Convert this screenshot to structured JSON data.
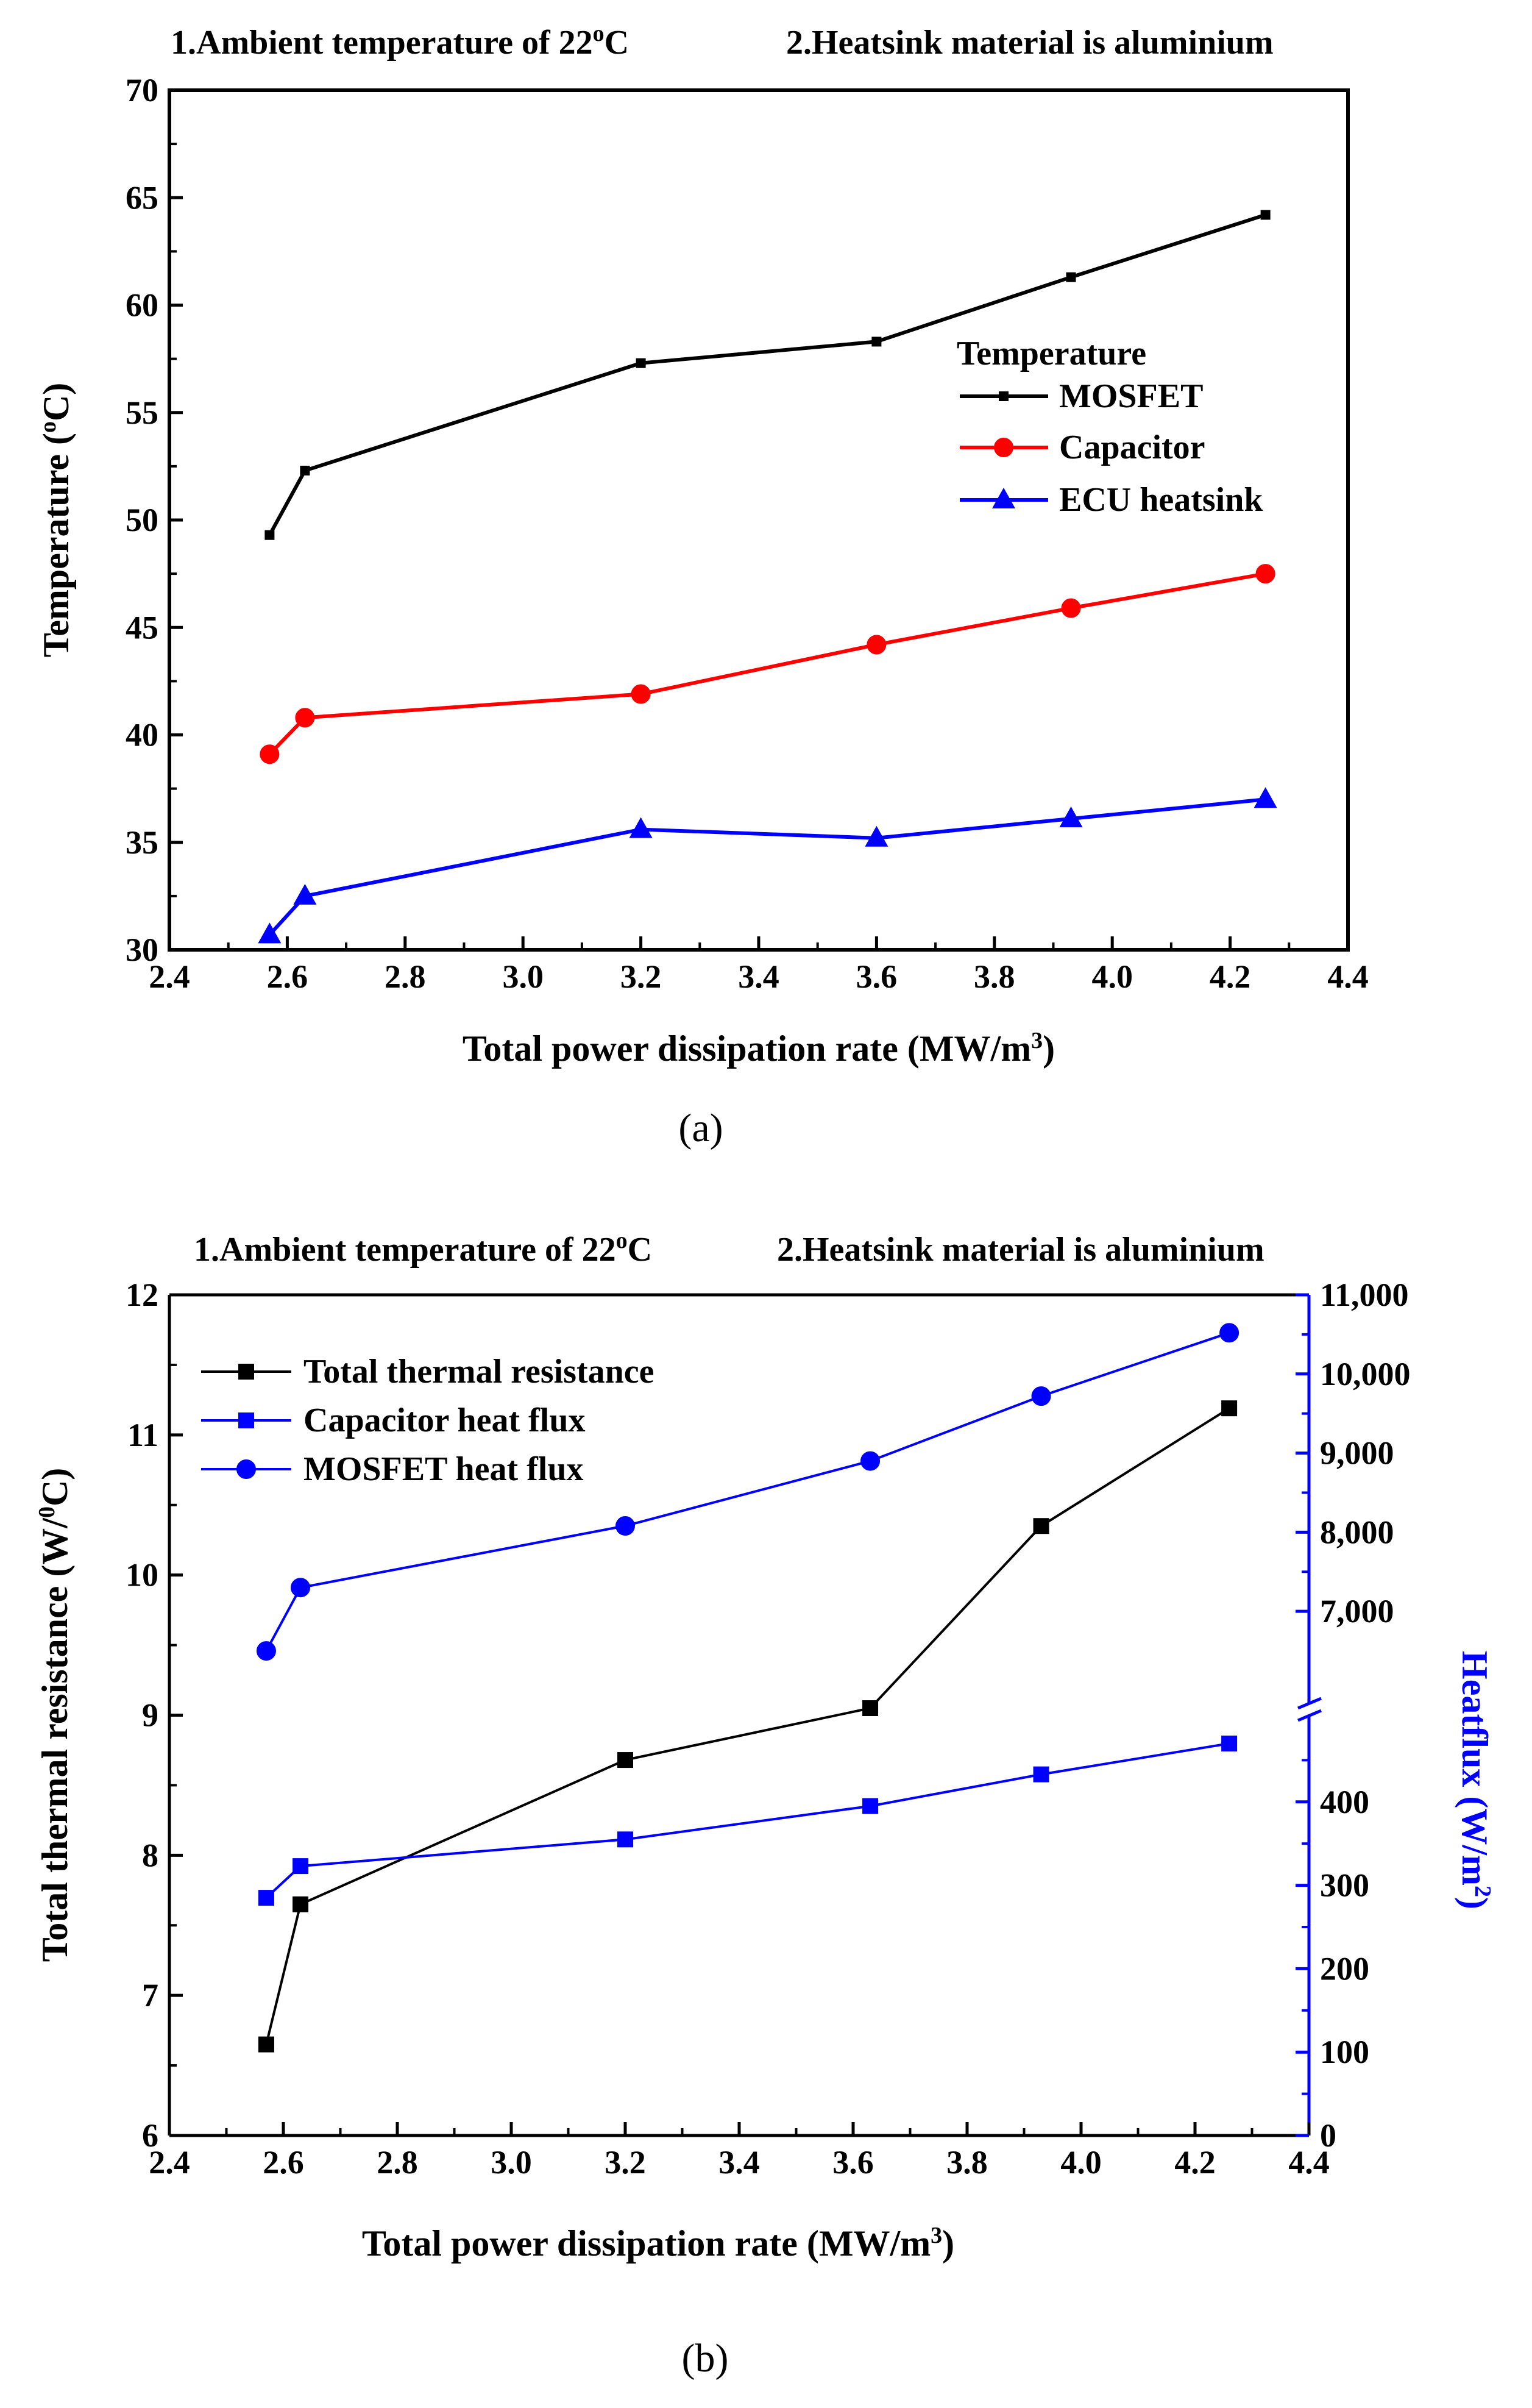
{
  "chart_data": [
    {
      "type": "line",
      "annotations": [
        "1.Ambient temperature of 22",
        "2.Heatsink material is aluminium"
      ],
      "annotation_superscript": "o",
      "annotation_unit": "C",
      "xlabel": "Total power dissipation rate (MW/m",
      "xlabel_superscript": "3",
      "xlabel_end": ")",
      "ylabel": "Temperature (",
      "ylabel_superscript": "o",
      "ylabel_end": "C)",
      "xlim": [
        2.4,
        4.4
      ],
      "ylim": [
        30,
        70
      ],
      "xticks": [
        "2.4",
        "2.6",
        "2.8",
        "3.0",
        "3.2",
        "3.4",
        "3.6",
        "3.8",
        "4.0",
        "4.2",
        "4.4"
      ],
      "yticks": [
        "30",
        "35",
        "40",
        "45",
        "50",
        "55",
        "60",
        "65",
        "70"
      ],
      "legend_title": "Temperature",
      "legend_position": "center-right",
      "caption": "(a)",
      "x": [
        2.57,
        2.63,
        3.2,
        3.6,
        3.93,
        4.26
      ],
      "series": [
        {
          "name": "MOSFET",
          "color": "#000000",
          "marker": "small-square",
          "values": [
            49.3,
            52.3,
            57.3,
            58.3,
            61.3,
            64.2
          ]
        },
        {
          "name": "Capacitor",
          "color": "#ff0000",
          "marker": "circle",
          "values": [
            39.1,
            40.8,
            41.9,
            44.2,
            45.9,
            47.5
          ]
        },
        {
          "name": "ECU heatsink",
          "color": "#0000ff",
          "marker": "triangle",
          "values": [
            30.7,
            32.5,
            35.6,
            35.2,
            36.1,
            37.0
          ]
        }
      ]
    },
    {
      "type": "line",
      "annotations": [
        "1.Ambient temperature of 22",
        "2.Heatsink material is aluminium"
      ],
      "annotation_superscript": "o",
      "annotation_unit": "C",
      "xlabel": "Total power dissipation rate (MW/m",
      "xlabel_superscript": "3",
      "xlabel_end": ")",
      "ylabel": "Total thermal resistance (W/",
      "ylabel_superscript": "0",
      "ylabel_end": "C)",
      "y2label": "Heatflux (W/m",
      "y2label_superscript": "2",
      "y2label_end": ")",
      "xlim": [
        2.4,
        4.4
      ],
      "ylim": [
        6,
        12
      ],
      "y2_scale": "broken",
      "y2_lower_range": [
        0,
        470
      ],
      "y2_upper_range": [
        6100,
        11000
      ],
      "xticks": [
        "2.4",
        "2.6",
        "2.8",
        "3.0",
        "3.2",
        "3.4",
        "3.6",
        "3.8",
        "4.0",
        "4.2",
        "4.4"
      ],
      "yticks": [
        "6",
        "7",
        "8",
        "9",
        "10",
        "11",
        "12"
      ],
      "y2ticks_lower": [
        "0",
        "100",
        "200",
        "300",
        "400"
      ],
      "y2ticks_upper": [
        "7,000",
        "8,000",
        "9,000",
        "10,000",
        "11,000"
      ],
      "legend_position": "top-left",
      "caption": "(b)",
      "x": [
        2.57,
        2.63,
        3.2,
        3.63,
        3.93,
        4.26
      ],
      "series": [
        {
          "name": "Total thermal resistance",
          "axis": "left",
          "color": "#000000",
          "marker": "square",
          "values": [
            6.65,
            7.65,
            8.68,
            9.05,
            10.35,
            11.19
          ]
        },
        {
          "name": "Capacitor heat flux",
          "axis": "right",
          "color": "#0000ff",
          "marker": "square",
          "values": [
            285,
            323,
            355,
            395,
            433,
            470
          ]
        },
        {
          "name": "MOSFET heat flux",
          "axis": "right",
          "color": "#0000ff",
          "marker": "circle",
          "values": [
            6500,
            7300,
            8080,
            8900,
            9720,
            10520
          ]
        }
      ]
    }
  ]
}
